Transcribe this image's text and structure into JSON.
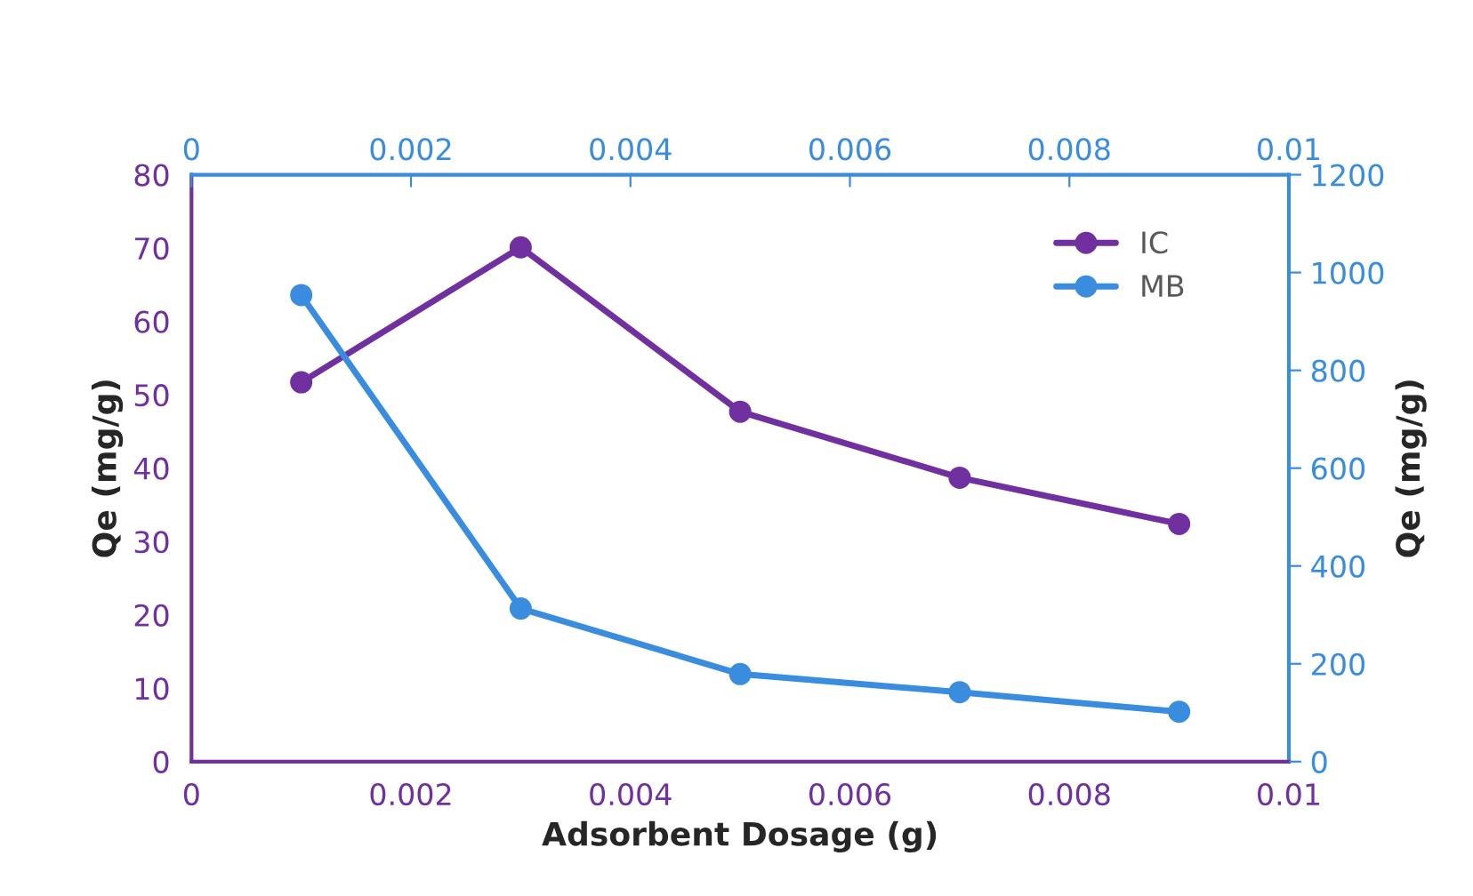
{
  "chart_data": {
    "type": "line",
    "xlabel": "Adsorbent Dosage (g)",
    "ylabel": "Qe (mg/g)",
    "y2label": "Qe (mg/g)",
    "x": [
      0.001,
      0.003,
      0.005,
      0.007,
      0.009
    ],
    "series": [
      {
        "name": "IC",
        "color": "#7030a0",
        "values": [
          51.7,
          70.1,
          47.7,
          38.7,
          32.4
        ]
      },
      {
        "name": "MB",
        "color": "#3a8dde",
        "axis": "y2",
        "values": [
          954,
          313,
          179,
          142,
          102
        ]
      }
    ],
    "xlim": [
      0,
      0.01
    ],
    "xticks": [
      0,
      0.002,
      0.004,
      0.006,
      0.008,
      0.01
    ],
    "x2lim": [
      0,
      0.01
    ],
    "x2ticks": [
      0,
      0.002,
      0.004,
      0.006,
      0.008,
      0.01
    ],
    "ylim": [
      0,
      80
    ],
    "yticks": [
      0,
      10,
      20,
      30,
      40,
      50,
      60,
      70,
      80
    ],
    "y2lim": [
      0,
      1200
    ],
    "y2ticks": [
      0,
      200,
      400,
      600,
      800,
      1000,
      1200
    ],
    "legend": "top right",
    "marker": "circle",
    "line_style": "solid",
    "grid": false
  }
}
